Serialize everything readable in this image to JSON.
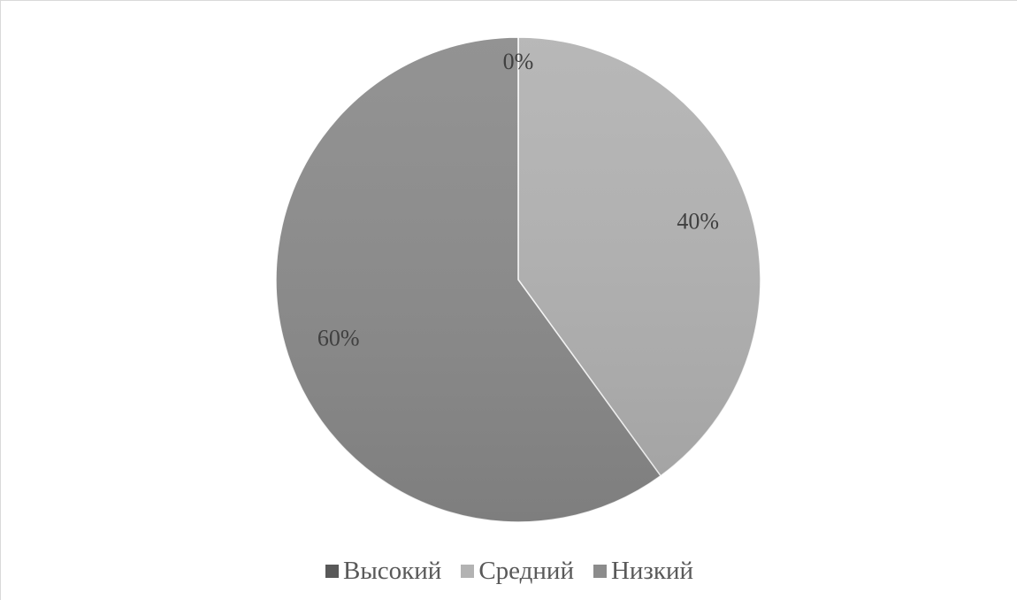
{
  "chart_data": {
    "type": "pie",
    "categories": [
      "Высокий",
      "Средний",
      "Низкий"
    ],
    "values": [
      0,
      40,
      60
    ],
    "data_labels": [
      "0%",
      "40%",
      "60%"
    ],
    "colors": [
      "#595959",
      "#b3b3b3",
      "#8c8c8c"
    ],
    "legend_position": "bottom",
    "start_angle_deg": 0,
    "direction": "clockwise"
  }
}
